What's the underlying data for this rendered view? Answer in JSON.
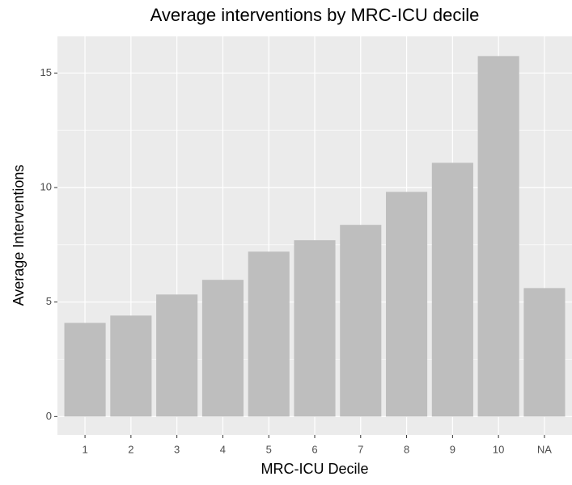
{
  "chart_data": {
    "type": "bar",
    "title": "Average interventions by MRC-ICU decile",
    "xlabel": "MRC-ICU Decile",
    "ylabel": "Average Interventions",
    "categories": [
      "1",
      "2",
      "3",
      "4",
      "5",
      "6",
      "7",
      "8",
      "9",
      "10",
      "NA"
    ],
    "values": [
      4.09,
      4.41,
      5.33,
      5.97,
      7.2,
      7.7,
      8.37,
      9.81,
      11.08,
      15.74,
      5.61
    ],
    "color": "#bebebe",
    "ylim": [
      -0.8,
      16.6
    ],
    "yticks": [
      0,
      5,
      10,
      15
    ],
    "grid": true
  }
}
